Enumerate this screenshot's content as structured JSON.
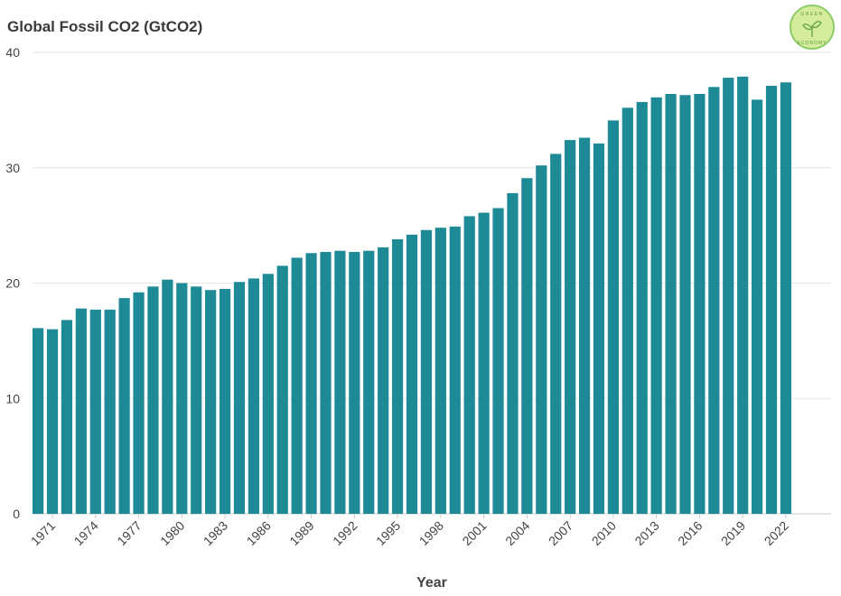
{
  "header": {
    "title": "Global Fossil CO2 (GtCO2)",
    "logo_text_top": "GREEN",
    "logo_text_bottom": "ECONOMY"
  },
  "colors": {
    "bar": "#1d8a96",
    "grid": "#e6e6e6",
    "axis": "#cccccc",
    "logo_fill": "#d4ec9c",
    "logo_ring": "#8ccd68"
  },
  "chart_data": {
    "type": "bar",
    "title": "Global Fossil CO2 (GtCO2)",
    "xlabel": "Year",
    "ylabel": "",
    "ylim": [
      0,
      40
    ],
    "yticks": [
      0,
      10,
      20,
      30,
      40
    ],
    "grid": true,
    "legend": "none",
    "categories": [
      1970,
      1971,
      1972,
      1973,
      1974,
      1975,
      1976,
      1977,
      1978,
      1979,
      1980,
      1981,
      1982,
      1983,
      1984,
      1985,
      1986,
      1987,
      1988,
      1989,
      1990,
      1991,
      1992,
      1993,
      1994,
      1995,
      1996,
      1997,
      1998,
      1999,
      2000,
      2001,
      2002,
      2003,
      2004,
      2005,
      2006,
      2007,
      2008,
      2009,
      2010,
      2011,
      2012,
      2013,
      2014,
      2015,
      2016,
      2017,
      2018,
      2019,
      2020,
      2021,
      2022
    ],
    "values": [
      16.1,
      16.0,
      16.8,
      17.8,
      17.7,
      17.7,
      18.7,
      19.2,
      19.7,
      20.3,
      20.0,
      19.7,
      19.4,
      19.5,
      20.1,
      20.4,
      20.8,
      21.5,
      22.2,
      22.6,
      22.7,
      22.8,
      22.7,
      22.8,
      23.1,
      23.8,
      24.2,
      24.6,
      24.8,
      24.9,
      25.8,
      26.1,
      26.5,
      27.8,
      29.1,
      30.2,
      31.2,
      32.4,
      32.6,
      32.1,
      34.1,
      35.2,
      35.7,
      36.1,
      36.4,
      36.3,
      36.4,
      37.0,
      37.8,
      37.9,
      35.9,
      37.1,
      37.4
    ],
    "xtick_labels": [
      "1971",
      "1974",
      "1977",
      "1980",
      "1983",
      "1986",
      "1989",
      "1992",
      "1995",
      "1998",
      "2001",
      "2004",
      "2007",
      "2010",
      "2013",
      "2016",
      "2019",
      "2022"
    ]
  }
}
